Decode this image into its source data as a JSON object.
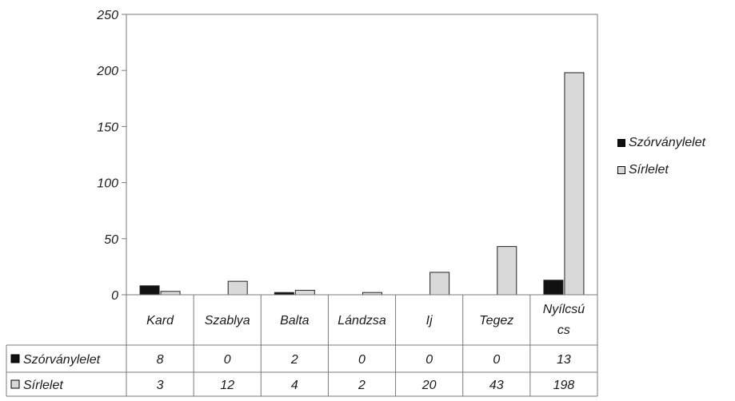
{
  "chart_data": {
    "type": "bar",
    "categories": [
      "Kard",
      "Szablya",
      "Balta",
      "Lándzsa",
      "Ij",
      "Tegez",
      "Nyílcsú cs"
    ],
    "category_lines": [
      [
        "Kard"
      ],
      [
        "Szablya"
      ],
      [
        "Balta"
      ],
      [
        "Lándzsa"
      ],
      [
        "Ij"
      ],
      [
        "Tegez"
      ],
      [
        "Nyílcsú",
        "cs"
      ]
    ],
    "series": [
      {
        "name": "Szórványlelet",
        "values": [
          8,
          0,
          2,
          0,
          0,
          0,
          13
        ],
        "color": "#111111"
      },
      {
        "name": "Sírlelet",
        "values": [
          3,
          12,
          4,
          2,
          20,
          43,
          198
        ],
        "color": "#d9d9d9"
      }
    ],
    "ylim": [
      0,
      250
    ],
    "yticks": [
      "0",
      "50",
      "100",
      "150",
      "200",
      "250"
    ],
    "ytick_values": [
      0,
      50,
      100,
      150,
      200,
      250
    ],
    "grid": false,
    "legend_position": "right",
    "data_table": true,
    "title": "",
    "xlabel": "",
    "ylabel": ""
  },
  "colors": {
    "border": "#7a7a7a",
    "text": "#1a1a1a"
  }
}
